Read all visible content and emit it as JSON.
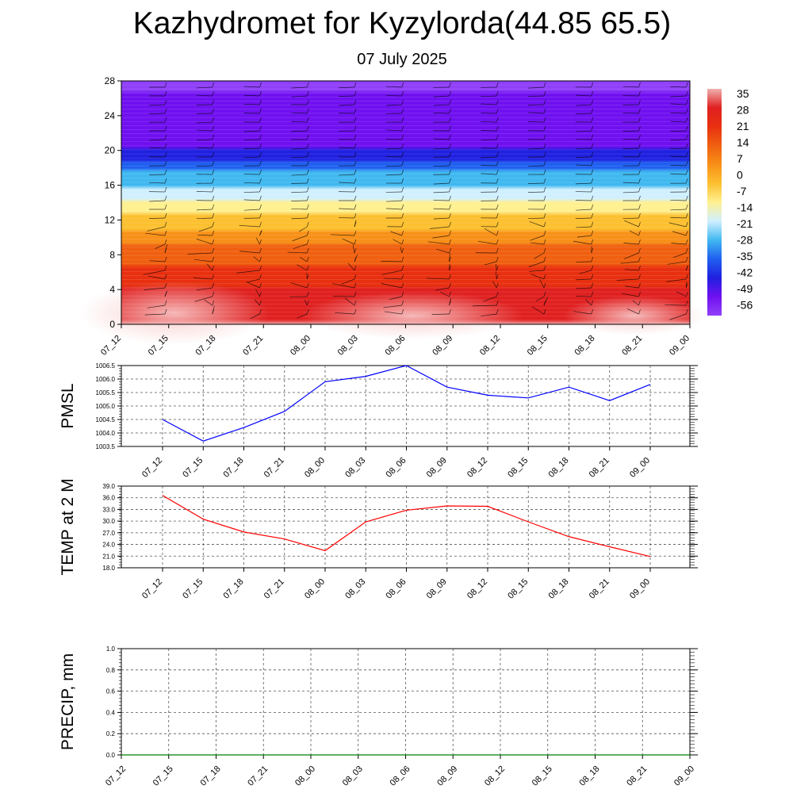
{
  "header": {
    "title": "Kazhydromet for Kyzylorda(44.85 65.5)",
    "date": "07 July 2025"
  },
  "chart_data": [
    {
      "type": "heatmap",
      "title": "",
      "xlabel": "",
      "ylabel": "",
      "x_ticks": [
        "07_12",
        "07_15",
        "07_18",
        "07_21",
        "08_00",
        "08_03",
        "08_06",
        "08_09",
        "08_12",
        "08_15",
        "08_18",
        "08_21",
        "09_00"
      ],
      "y_ticks": [
        0,
        4,
        8,
        12,
        16,
        20,
        24,
        28
      ],
      "ylim": [
        0,
        28
      ],
      "colorbar_labels": [
        "35",
        "28",
        "21",
        "14",
        "7",
        "0",
        "-7",
        "-14",
        "-21",
        "-28",
        "-35",
        "-42",
        "-49",
        "-56"
      ],
      "colormap": [
        "#f0b0b0",
        "#e02020",
        "#e83010",
        "#f06010",
        "#f89018",
        "#fcc030",
        "#fff090",
        "#d0f0ff",
        "#40b8f0",
        "#2060f0",
        "#2020e0",
        "#7010f0",
        "#9040f8"
      ],
      "temperature_profile": [
        {
          "level": 0,
          "value": 33
        },
        {
          "level": 4,
          "value": 24
        },
        {
          "level": 8,
          "value": 12
        },
        {
          "level": 12,
          "value": -6
        },
        {
          "level": 14,
          "value": -16
        },
        {
          "level": 18,
          "value": -35
        },
        {
          "level": 21,
          "value": -56
        },
        {
          "level": 24,
          "value": -50
        },
        {
          "level": 28,
          "value": -62
        }
      ]
    },
    {
      "type": "line",
      "ylabel": "PMSL",
      "ylim": [
        1003.5,
        1006.5
      ],
      "y_ticks": [
        "1003.5",
        "1004.0",
        "1004.5",
        "1005.0",
        "1005.5",
        "1006.0",
        "1006.5"
      ],
      "categories": [
        "07_12",
        "07_15",
        "07_18",
        "07_21",
        "08_00",
        "08_03",
        "08_06",
        "08_09",
        "08_12",
        "08_15",
        "08_18",
        "08_21",
        "09_00"
      ],
      "series": [
        {
          "values": [
            1004.5,
            1003.7,
            1004.2,
            1004.8,
            1005.9,
            1006.1,
            1006.5,
            1005.7,
            1005.4,
            1005.3,
            1005.7,
            1005.2,
            1005.8
          ],
          "color": "#0000ff"
        }
      ]
    },
    {
      "type": "line",
      "ylabel": "TEMP at 2 M",
      "ylim": [
        18.0,
        39.0
      ],
      "y_ticks": [
        "18.0",
        "21.0",
        "24.0",
        "27.0",
        "30.0",
        "33.0",
        "36.0",
        "39.0"
      ],
      "categories": [
        "07_12",
        "07_15",
        "07_18",
        "07_21",
        "08_00",
        "08_03",
        "08_06",
        "08_09",
        "08_12",
        "08_15",
        "08_18",
        "08_21",
        "09_00"
      ],
      "series": [
        {
          "values": [
            36.6,
            30.5,
            27.2,
            25.4,
            22.4,
            29.8,
            32.8,
            33.9,
            33.8,
            29.8,
            26.0,
            23.4,
            20.9
          ],
          "color": "#ff0000"
        }
      ]
    },
    {
      "type": "line",
      "ylabel": "PRECIP, mm",
      "ylim": [
        0.0,
        1.0
      ],
      "y_ticks": [
        "0.0",
        "0.2",
        "0.4",
        "0.6",
        "0.8",
        "1.0"
      ],
      "categories": [
        "07_12",
        "07_15",
        "07_18",
        "07_21",
        "08_00",
        "08_03",
        "08_06",
        "08_09",
        "08_12",
        "08_15",
        "08_18",
        "08_21",
        "09_00"
      ],
      "series": [
        {
          "values": [
            0,
            0,
            0,
            0,
            0,
            0,
            0,
            0,
            0,
            0,
            0,
            0,
            0
          ],
          "color": "#008000"
        }
      ]
    }
  ]
}
